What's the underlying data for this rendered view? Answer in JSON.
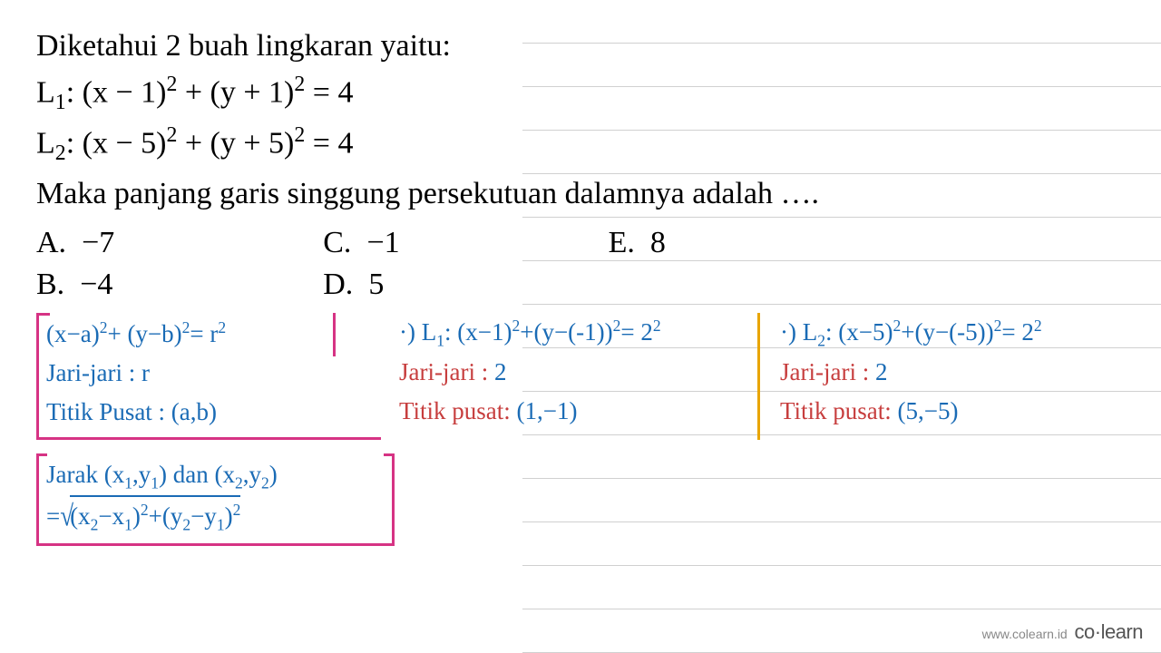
{
  "problem": {
    "intro": "Diketahui 2 buah lingkaran yaitu:",
    "eq1_prefix": "L",
    "eq1_sub": "1",
    "eq1_body": ": (x − 1)",
    "eq1_exp1": "2",
    "eq1_mid": " + (y + 1)",
    "eq1_exp2": "2",
    "eq1_rhs": " = 4",
    "eq2_prefix": "L",
    "eq2_sub": "2",
    "eq2_body": ": (x − 5)",
    "eq2_exp1": "2",
    "eq2_mid": " + (y + 5)",
    "eq2_exp2": "2",
    "eq2_rhs": " = 4",
    "question": "Maka panjang garis singgung persekutuan dalamnya adalah ….",
    "options": {
      "A": "−7",
      "B": "−4",
      "C": "−1",
      "D": "5",
      "E": "8"
    }
  },
  "handwriting": {
    "colors": {
      "blue": "#1a6bb5",
      "pink": "#d63384",
      "red": "#c73e3e",
      "orange": "#e8a500"
    },
    "formula_box": {
      "eq_l": "(x−a)",
      "eq_e1": "2",
      "eq_m": "+ (y−b)",
      "eq_e2": "2",
      "eq_r": "= r",
      "eq_e3": "2",
      "radius_label": "Jari-jari : r",
      "center_label": "Titik Pusat : (a,b)"
    },
    "circle1": {
      "bullet": "·)",
      "prefix": "L",
      "sub": "1",
      "body_l": ": (x−1)",
      "e1": "2",
      "body_m": "+(y−(-1))",
      "e2": "2",
      "body_r": "= 2",
      "e3": "2",
      "radius_label": "Jari-jari :",
      "radius_val": "2",
      "center_label": "Titik pusat:",
      "center_val": "(1,−1)"
    },
    "circle2": {
      "bullet": "·)",
      "prefix": "L",
      "sub": "2",
      "body_l": ": (x−5)",
      "e1": "2",
      "body_m": "+(y−(-5))",
      "e2": "2",
      "body_r": "= 2",
      "e3": "2",
      "radius_label": "Jari-jari :",
      "radius_val": "2",
      "center_label": "Titik pusat:",
      "center_val": "(5,−5)"
    },
    "distance_box": {
      "line1_l": "Jarak (x",
      "line1_s1": "1",
      "line1_m1": ",y",
      "line1_s2": "1",
      "line1_m2": ") dan (x",
      "line1_s3": "2",
      "line1_m3": ",y",
      "line1_s4": "2",
      "line1_r": ")",
      "line2_eq": "=",
      "line2_inner_l": "(x",
      "line2_s1": "2",
      "line2_m1": "−x",
      "line2_s2": "1",
      "line2_m2": ")",
      "line2_e1": "2",
      "line2_m3": "+(y",
      "line2_s3": "2",
      "line2_m4": "−y",
      "line2_s4": "1",
      "line2_m5": ")",
      "line2_e2": "2"
    }
  },
  "watermark": {
    "url": "www.colearn.id",
    "brand_l": "co",
    "brand_dot": "·",
    "brand_r": "learn"
  }
}
